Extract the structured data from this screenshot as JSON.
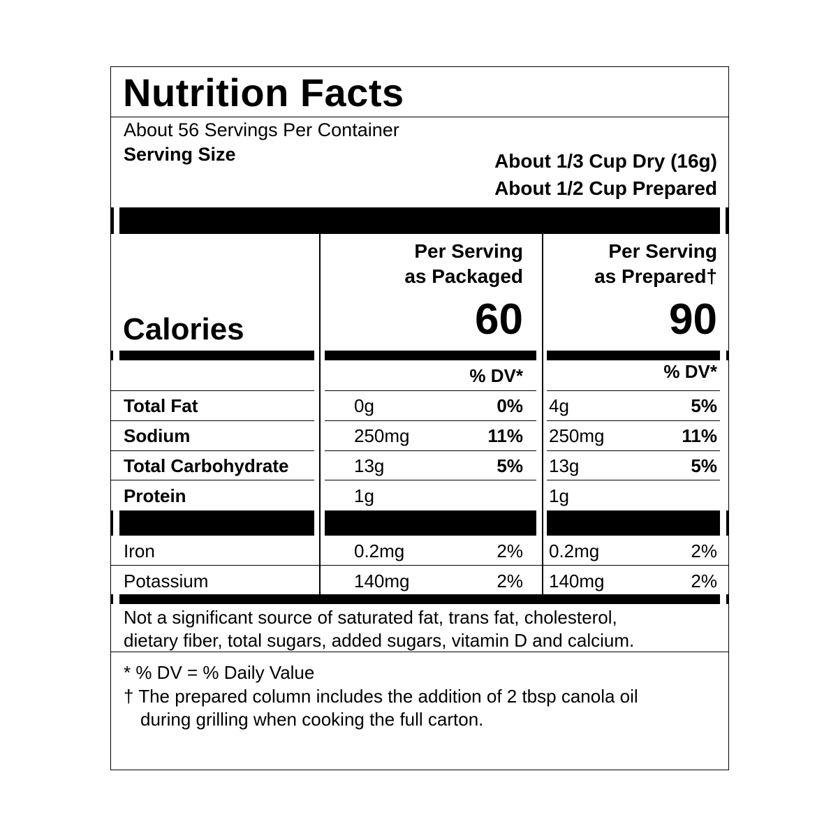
{
  "title": "Nutrition Facts",
  "servings_per_container": "About 56 Servings Per Container",
  "serving_size_label": "Serving Size",
  "serving_size_dry": "About 1/3 Cup Dry (16g)",
  "serving_size_prepared": "About 1/2 Cup Prepared",
  "columns": {
    "packaged": {
      "header_line1": "Per Serving",
      "header_line2": "as Packaged",
      "calories": "60",
      "dv_header": "% DV*"
    },
    "prepared": {
      "header_line1": "Per Serving",
      "header_line2": "as Prepared†",
      "calories": "90",
      "dv_header": "% DV*"
    }
  },
  "calories_label": "Calories",
  "nutrients": [
    {
      "name": "Total Fat",
      "packaged_amount": "0g",
      "packaged_dv": "0%",
      "prepared_amount": "4g",
      "prepared_dv": "5%"
    },
    {
      "name": "Sodium",
      "packaged_amount": "250mg",
      "packaged_dv": "11%",
      "prepared_amount": "250mg",
      "prepared_dv": "11%"
    },
    {
      "name": "Total Carbohydrate",
      "packaged_amount": "13g",
      "packaged_dv": "5%",
      "prepared_amount": "13g",
      "prepared_dv": "5%"
    },
    {
      "name": "Protein",
      "packaged_amount": "1g",
      "packaged_dv": "",
      "prepared_amount": "1g",
      "prepared_dv": ""
    }
  ],
  "minerals": [
    {
      "name": "Iron",
      "packaged_amount": "0.2mg",
      "packaged_dv": "2%",
      "prepared_amount": "0.2mg",
      "prepared_dv": "2%"
    },
    {
      "name": "Potassium",
      "packaged_amount": "140mg",
      "packaged_dv": "2%",
      "prepared_amount": "140mg",
      "prepared_dv": "2%"
    }
  ],
  "not_significant_line1": "Not a significant source of saturated fat, trans fat, cholesterol,",
  "not_significant_line2": "dietary fiber, total sugars, added sugars, vitamin D and calcium.",
  "footnote_dv": "* % DV = % Daily Value",
  "footnote_dagger_line1": "† The prepared column includes the addition of 2 tbsp canola oil",
  "footnote_dagger_line2": "during grilling when cooking the full carton."
}
